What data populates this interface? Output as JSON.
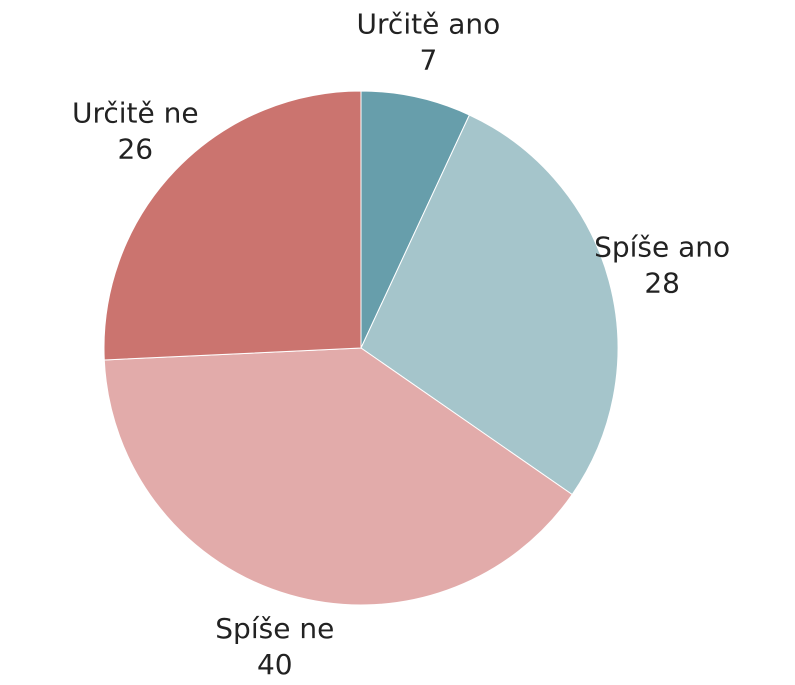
{
  "chart_data": {
    "type": "pie",
    "categories": [
      "Určitě ano",
      "Spíše ano",
      "Spíše ne",
      "Určitě ne"
    ],
    "values": [
      7,
      28,
      40,
      26
    ],
    "colors": [
      "#679eab",
      "#a5c5cb",
      "#e2abaa",
      "#cb746f"
    ]
  }
}
